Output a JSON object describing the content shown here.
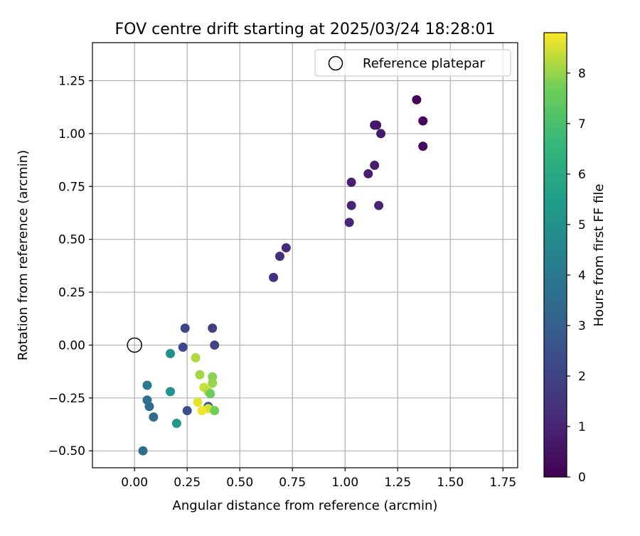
{
  "chart_data": {
    "type": "scatter",
    "title": "FOV centre drift starting at 2025/03/24 18:28:01",
    "xlabel": "Angular distance from reference (arcmin)",
    "ylabel": "Rotation from reference (arcmin)",
    "xlim": [
      -0.2,
      1.82
    ],
    "ylim": [
      -0.58,
      1.43
    ],
    "x_ticks": [
      0.0,
      0.25,
      0.5,
      0.75,
      1.0,
      1.25,
      1.5,
      1.75
    ],
    "x_tick_labels": [
      "0.00",
      "0.25",
      "0.50",
      "0.75",
      "1.00",
      "1.25",
      "1.50",
      "1.75"
    ],
    "y_ticks": [
      -0.5,
      -0.25,
      0.0,
      0.25,
      0.5,
      0.75,
      1.0,
      1.25
    ],
    "y_tick_labels": [
      "−0.50",
      "−0.25",
      "0.00",
      "0.25",
      "0.50",
      "0.75",
      "1.00",
      "1.25"
    ],
    "grid": true,
    "legend": {
      "position": "top-right",
      "label": "Reference platepar"
    },
    "reference_point": {
      "x": 0.0,
      "y": 0.0
    },
    "colorbar": {
      "label": "Hours from first FF file",
      "colormap": "viridis",
      "range": [
        0,
        8.8
      ],
      "ticks": [
        0,
        1,
        2,
        3,
        4,
        5,
        6,
        7,
        8
      ],
      "tick_labels": [
        "0",
        "1",
        "2",
        "3",
        "4",
        "5",
        "6",
        "7",
        "8"
      ]
    },
    "points": [
      {
        "x": 1.34,
        "y": 1.16,
        "hours": 0.1
      },
      {
        "x": 1.37,
        "y": 1.06,
        "hours": 0.2
      },
      {
        "x": 1.37,
        "y": 0.94,
        "hours": 0.3
      },
      {
        "x": 1.14,
        "y": 1.04,
        "hours": 0.6
      },
      {
        "x": 1.15,
        "y": 1.04,
        "hours": 0.6
      },
      {
        "x": 1.17,
        "y": 1.0,
        "hours": 0.7
      },
      {
        "x": 1.14,
        "y": 0.85,
        "hours": 0.8
      },
      {
        "x": 1.11,
        "y": 0.81,
        "hours": 0.8
      },
      {
        "x": 1.03,
        "y": 0.77,
        "hours": 0.9
      },
      {
        "x": 1.03,
        "y": 0.66,
        "hours": 1.0
      },
      {
        "x": 1.16,
        "y": 0.66,
        "hours": 1.0
      },
      {
        "x": 1.02,
        "y": 0.58,
        "hours": 1.1
      },
      {
        "x": 0.72,
        "y": 0.46,
        "hours": 1.2
      },
      {
        "x": 0.69,
        "y": 0.42,
        "hours": 1.3
      },
      {
        "x": 0.66,
        "y": 0.32,
        "hours": 1.4
      },
      {
        "x": 0.37,
        "y": 0.08,
        "hours": 1.9
      },
      {
        "x": 0.38,
        "y": 0.0,
        "hours": 2.0
      },
      {
        "x": 0.24,
        "y": 0.08,
        "hours": 2.1
      },
      {
        "x": 0.23,
        "y": -0.01,
        "hours": 2.2
      },
      {
        "x": 0.25,
        "y": -0.31,
        "hours": 2.4
      },
      {
        "x": 0.09,
        "y": -0.34,
        "hours": 3.4
      },
      {
        "x": 0.07,
        "y": -0.29,
        "hours": 3.5
      },
      {
        "x": 0.06,
        "y": -0.26,
        "hours": 3.7
      },
      {
        "x": 0.04,
        "y": -0.5,
        "hours": 3.6
      },
      {
        "x": 0.06,
        "y": -0.19,
        "hours": 4.1
      },
      {
        "x": 0.17,
        "y": -0.04,
        "hours": 5.0
      },
      {
        "x": 0.17,
        "y": -0.22,
        "hours": 5.1
      },
      {
        "x": 0.2,
        "y": -0.37,
        "hours": 5.3
      },
      {
        "x": 0.35,
        "y": -0.29,
        "hours": 2.6
      },
      {
        "x": 0.29,
        "y": -0.06,
        "hours": 8.2
      },
      {
        "x": 0.31,
        "y": -0.14,
        "hours": 8.1
      },
      {
        "x": 0.37,
        "y": -0.15,
        "hours": 7.9
      },
      {
        "x": 0.37,
        "y": -0.18,
        "hours": 8.0
      },
      {
        "x": 0.33,
        "y": -0.2,
        "hours": 8.4
      },
      {
        "x": 0.35,
        "y": -0.22,
        "hours": 8.3
      },
      {
        "x": 0.36,
        "y": -0.23,
        "hours": 7.6
      },
      {
        "x": 0.3,
        "y": -0.27,
        "hours": 8.6
      },
      {
        "x": 0.35,
        "y": -0.3,
        "hours": 8.5
      },
      {
        "x": 0.32,
        "y": -0.31,
        "hours": 8.7
      },
      {
        "x": 0.38,
        "y": -0.31,
        "hours": 7.7
      }
    ],
    "colors": {
      "axis": "#000000",
      "grid": "#b0b0b0",
      "reference_marker": "#000000",
      "legend_border": "#cccccc"
    }
  }
}
